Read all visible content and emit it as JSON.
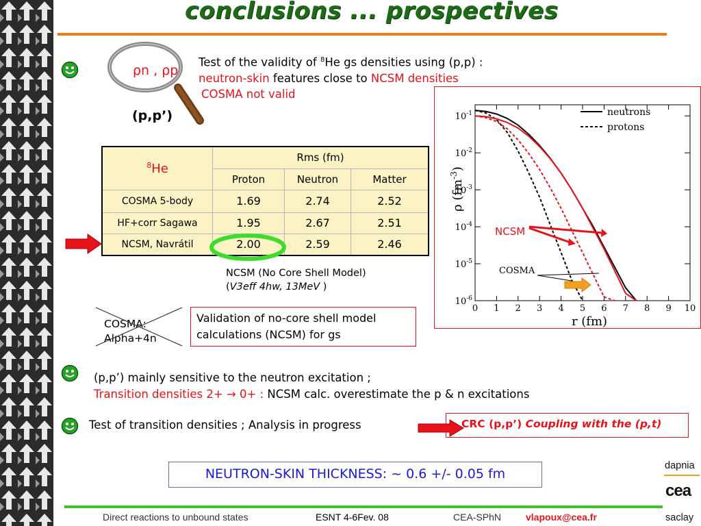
{
  "title": "conclusions ... prospectives",
  "magnifier": {
    "rho_n": "ρn",
    "comma": " ,",
    "rho_p": "ρp",
    "pp_label": "(p,p’)"
  },
  "block1": {
    "line1_a": "Test of the validity of ",
    "line1_sup": "8",
    "line1_b": "He gs densities using (p,p) :",
    "line2_red1": "neutron-skin",
    "line2_mid": " features close to ",
    "line2_red2": "NCSM densities",
    "line3": "COSMA not valid"
  },
  "table": {
    "corner_sup": "8",
    "corner": "He",
    "group_header": "Rms (fm)",
    "columns": [
      "Proton",
      "Neutron",
      "Matter"
    ],
    "rows": [
      {
        "label": "COSMA 5-body",
        "values": [
          "1.69",
          "2.74",
          "2.52"
        ]
      },
      {
        "label": "HF+corr Sagawa",
        "values": [
          "1.95",
          "2.67",
          "2.51"
        ]
      },
      {
        "label": "NCSM, Navrátil",
        "values": [
          "2.00",
          "2.59",
          "2.46"
        ]
      }
    ]
  },
  "ncsm_note": {
    "line1": "NCSM (No Core Shell Model)",
    "line2_open": "(",
    "line2_italic": "V3eff 4hw, 13MeV",
    "line2_close": " )"
  },
  "cosma_alpha": {
    "line1": "COSMA:",
    "line2": "Alpha+4n"
  },
  "validation": "Validation of no-core shell model calculations (NCSM) for gs",
  "line2": {
    "a": "(p,p’) mainly sensitive to the neutron excitation ;",
    "b_red": "Transition densities 2+ ",
    "arrow": "→",
    "b_red2": " 0+ : ",
    "b_black": "NCSM calc. overestimate the p & n excitations"
  },
  "line3": "Test of transition densities  ; Analysis in progress",
  "crc": {
    "a": "CRC (p,p’) ",
    "b": "Coupling with the (p,t)"
  },
  "conclusion": "NEUTRON-SKIN THICKNESS: ~ 0.6 +/- 0.05 fm",
  "footer": {
    "left": "Direct reactions to unbound states",
    "mid": "ESNT 4-6Fev. 08",
    "org": "CEA-SPhN",
    "email": "vlapoux@cea.fr"
  },
  "logos": {
    "top": "dapnia",
    "middle": "cea",
    "bottom": "saclay"
  },
  "colors": {
    "title_green": "#1d6b16",
    "accent_orange": "#f07b17",
    "red": "#e8121a",
    "blue": "#1a1ad6",
    "footer_green": "#3fbf2f"
  },
  "chart_data": {
    "type": "line",
    "ylabel": "ρ (fm",
    "ylabel_sup": "-3",
    "ylabel_close": ")",
    "xlabel": "r (fm)",
    "xlim": [
      0,
      10
    ],
    "ylim_log10": [
      -6,
      -0.7
    ],
    "x_ticks": [
      "0",
      "1",
      "2",
      "3",
      "4",
      "5",
      "6",
      "7",
      "8",
      "9",
      "10"
    ],
    "y_ticks": [
      {
        "base": "10",
        "exp": "-1",
        "log": -1
      },
      {
        "base": "10",
        "exp": "-2",
        "log": -2
      },
      {
        "base": "10",
        "exp": "-3",
        "log": -3
      },
      {
        "base": "10",
        "exp": "-4",
        "log": -4
      },
      {
        "base": "10",
        "exp": "-5",
        "log": -5
      },
      {
        "base": "10",
        "exp": "-6",
        "log": -6
      }
    ],
    "legend": [
      {
        "name": "neutrons",
        "style": "solid"
      },
      {
        "name": "protons",
        "style": "dashed"
      }
    ],
    "legend_position": "top-right",
    "annotations": [
      "NCSM",
      "COSMA"
    ],
    "series": [
      {
        "model": "COSMA",
        "kind": "neutrons",
        "color": "#000000",
        "dash": false,
        "x": [
          0,
          0.5,
          1,
          1.5,
          2,
          2.5,
          3,
          3.5,
          4,
          4.5,
          5,
          5.5,
          6,
          6.5,
          7,
          7.5
        ],
        "y": [
          -0.85,
          -0.88,
          -0.95,
          -1.07,
          -1.25,
          -1.5,
          -1.8,
          -2.15,
          -2.55,
          -3.0,
          -3.5,
          -4.0,
          -4.55,
          -5.1,
          -5.65,
          -6.1
        ]
      },
      {
        "model": "COSMA",
        "kind": "protons",
        "color": "#000000",
        "dash": true,
        "x": [
          0,
          0.5,
          1,
          1.5,
          2,
          2.5,
          3,
          3.5,
          4,
          4.5,
          5
        ],
        "y": [
          -0.85,
          -0.92,
          -1.1,
          -1.45,
          -1.95,
          -2.55,
          -3.2,
          -3.95,
          -4.7,
          -5.45,
          -6.1
        ]
      },
      {
        "model": "NCSM",
        "kind": "neutrons",
        "color": "#e8121a",
        "dash": false,
        "x": [
          0,
          0.5,
          1,
          1.5,
          2,
          2.5,
          3,
          3.5,
          4,
          4.5,
          5,
          5.5,
          6,
          6.5,
          7,
          7.5
        ],
        "y": [
          -1.0,
          -1.02,
          -1.08,
          -1.18,
          -1.33,
          -1.55,
          -1.83,
          -2.16,
          -2.55,
          -3.0,
          -3.5,
          -4.05,
          -4.6,
          -5.2,
          -5.8,
          -6.1
        ]
      },
      {
        "model": "NCSM",
        "kind": "protons",
        "color": "#e8121a",
        "dash": true,
        "x": [
          0,
          0.5,
          1,
          1.5,
          2,
          2.5,
          3,
          3.5,
          4,
          4.5,
          5,
          5.5,
          6,
          6.5
        ],
        "y": [
          -1.0,
          -1.05,
          -1.15,
          -1.35,
          -1.65,
          -2.02,
          -2.45,
          -2.95,
          -3.5,
          -4.1,
          -4.7,
          -5.3,
          -5.9,
          -6.1
        ]
      }
    ]
  }
}
